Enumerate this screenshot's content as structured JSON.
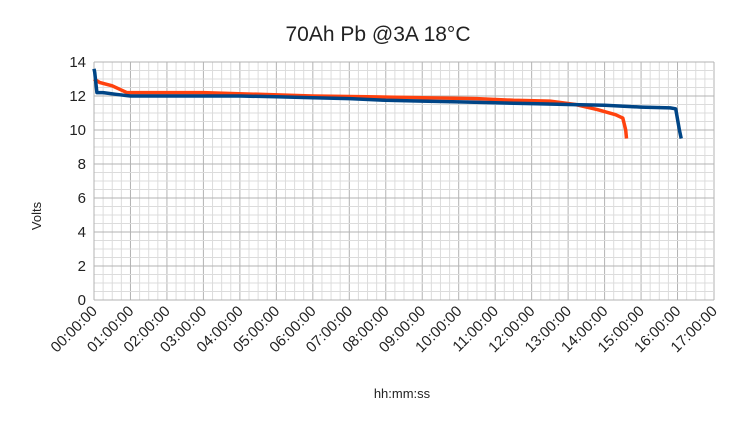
{
  "chart_data": {
    "type": "line",
    "title": "70Ah Pb   @3A  18°C",
    "xlabel": "hh:mm:ss",
    "ylabel": "Volts",
    "xlim": [
      0,
      17
    ],
    "ylim": [
      0,
      14
    ],
    "x_ticks": [
      "00:00:00",
      "01:00:00",
      "02:00:00",
      "03:00:00",
      "04:00:00",
      "05:00:00",
      "06:00:00",
      "07:00:00",
      "08:00:00",
      "09:00:00",
      "10:00:00",
      "11:00:00",
      "12:00:00",
      "13:00:00",
      "14:00:00",
      "15:00:00",
      "16:00:00",
      "17:00:00"
    ],
    "y_ticks": [
      0,
      2,
      4,
      6,
      8,
      10,
      12,
      14
    ],
    "grid": true,
    "legend": "none",
    "series": [
      {
        "color": "#ff420e",
        "points": [
          [
            0.0,
            13.0
          ],
          [
            0.15,
            12.8
          ],
          [
            0.5,
            12.6
          ],
          [
            0.9,
            12.2
          ],
          [
            1.5,
            12.2
          ],
          [
            3.0,
            12.2
          ],
          [
            4.5,
            12.1
          ],
          [
            6.0,
            12.0
          ],
          [
            7.5,
            11.95
          ],
          [
            9.0,
            11.9
          ],
          [
            10.5,
            11.85
          ],
          [
            11.5,
            11.75
          ],
          [
            12.5,
            11.7
          ],
          [
            13.2,
            11.5
          ],
          [
            13.8,
            11.2
          ],
          [
            14.3,
            10.9
          ],
          [
            14.5,
            10.7
          ],
          [
            14.58,
            10.0
          ],
          [
            14.6,
            9.5
          ]
        ]
      },
      {
        "color": "#004586",
        "points": [
          [
            0.0,
            13.6
          ],
          [
            0.02,
            13.4
          ],
          [
            0.08,
            12.2
          ],
          [
            0.25,
            12.2
          ],
          [
            0.6,
            12.1
          ],
          [
            1.0,
            12.0
          ],
          [
            2.0,
            12.0
          ],
          [
            3.0,
            12.0
          ],
          [
            4.0,
            12.0
          ],
          [
            5.0,
            11.95
          ],
          [
            6.0,
            11.9
          ],
          [
            7.0,
            11.85
          ],
          [
            8.0,
            11.75
          ],
          [
            9.0,
            11.7
          ],
          [
            10.0,
            11.65
          ],
          [
            11.0,
            11.6
          ],
          [
            12.0,
            11.55
          ],
          [
            13.0,
            11.5
          ],
          [
            14.0,
            11.45
          ],
          [
            15.0,
            11.35
          ],
          [
            15.8,
            11.3
          ],
          [
            15.95,
            11.25
          ],
          [
            16.05,
            10.0
          ],
          [
            16.1,
            9.5
          ]
        ]
      }
    ]
  }
}
